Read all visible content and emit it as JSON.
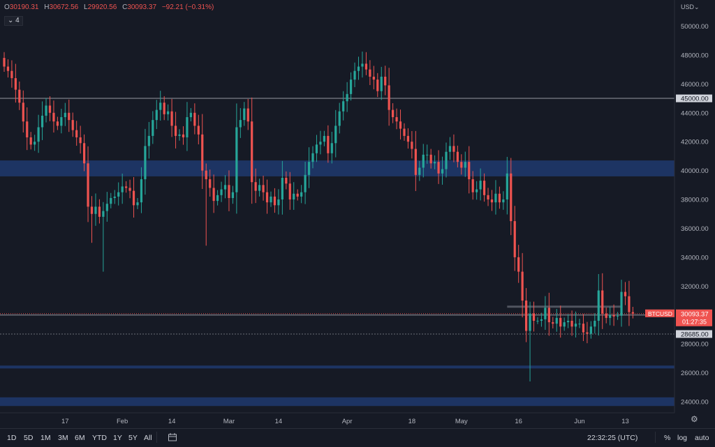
{
  "legend": {
    "open_key": "O",
    "open_value": "30190.31",
    "high_key": "H",
    "high_value": "30672.56",
    "low_key": "L",
    "low_value": "29920.56",
    "close_key": "C",
    "close_value": "30093.37",
    "change": "−92.21 (−0.31%)"
  },
  "indicators_count": "4",
  "currency": "USD",
  "price_axis": {
    "ticks": [
      "50000.00",
      "48000.00",
      "46000.00",
      "45000.00",
      "44000.00",
      "42000.00",
      "40000.00",
      "38000.00",
      "36000.00",
      "34000.00",
      "32000.00",
      "30000.00",
      "28685.00",
      "28000.00",
      "26000.00",
      "24000.00"
    ]
  },
  "price_labels": {
    "symbol": "BTCUSD",
    "last_price": "30093.37",
    "countdown": "01:27:35",
    "level_30000": "30000.00",
    "level_28685": "28685.00",
    "level_45000": "45000.00"
  },
  "time_axis": [
    "17",
    "Feb",
    "14",
    "Mar",
    "14",
    "Apr",
    "18",
    "May",
    "16",
    "Jun",
    "13"
  ],
  "bottom_bar": {
    "timeframes": [
      "1D",
      "5D",
      "1M",
      "3M",
      "6M",
      "YTD",
      "1Y",
      "5Y",
      "All"
    ],
    "clock": "22:32:25 (UTC)",
    "percent": "%",
    "log": "log",
    "auto": "auto"
  },
  "colors": {
    "background": "#161a25",
    "up": "#26a69a",
    "down": "#ef5350",
    "zone": "#1e3a6e",
    "text": "#b2b5be"
  },
  "chart_data": {
    "type": "candlestick",
    "symbol": "BTCUSD",
    "ylim": [
      23500,
      51500
    ],
    "price_axis_values": [
      50000,
      48000,
      46000,
      45000,
      44000,
      42000,
      40000,
      38000,
      36000,
      34000,
      32000,
      30000,
      28685,
      28000,
      26000,
      24000
    ],
    "x_ticks": [
      {
        "label": "17",
        "day": 16
      },
      {
        "label": "Feb",
        "day": 31
      },
      {
        "label": "14",
        "day": 44
      },
      {
        "label": "Mar",
        "day": 59
      },
      {
        "label": "14",
        "day": 72
      },
      {
        "label": "Apr",
        "day": 90
      },
      {
        "label": "18",
        "day": 107
      },
      {
        "label": "May",
        "day": 120
      },
      {
        "label": "16",
        "day": 135
      },
      {
        "label": "Jun",
        "day": 151
      },
      {
        "label": "13",
        "day": 163
      }
    ],
    "horizontal_lines": [
      45000,
      30093.37,
      30000,
      28685
    ],
    "zones": [
      [
        39600,
        40700
      ],
      [
        26300,
        26500
      ],
      [
        23700,
        24300
      ]
    ],
    "last_close": 30093.37,
    "closes": [
      47200,
      46900,
      46400,
      45600,
      44700,
      43400,
      42300,
      41800,
      42000,
      43000,
      43800,
      44500,
      44000,
      43400,
      43100,
      43700,
      44000,
      43500,
      42800,
      42300,
      41900,
      40500,
      37500,
      37000,
      37500,
      36800,
      37200,
      37700,
      38100,
      38200,
      38500,
      38900,
      38800,
      38600,
      37600,
      37800,
      39400,
      41700,
      42400,
      43500,
      44200,
      44700,
      43900,
      44100,
      43100,
      42400,
      42500,
      42300,
      43700,
      44000,
      43100,
      42500,
      40000,
      39400,
      38800,
      37900,
      38300,
      38700,
      39000,
      38100,
      38500,
      43000,
      43500,
      44300,
      43400,
      39200,
      38600,
      39000,
      38500,
      37800,
      38200,
      37600,
      38000,
      39500,
      39100,
      38000,
      38400,
      38200,
      38500,
      39700,
      40600,
      41200,
      41800,
      42000,
      42400,
      41200,
      41900,
      43100,
      44100,
      44800,
      45300,
      46300,
      46900,
      47200,
      47400,
      47000,
      46500,
      46300,
      45500,
      46500,
      45900,
      44200,
      43700,
      43400,
      42900,
      42400,
      42000,
      41500,
      39700,
      40200,
      41100,
      41100,
      40500,
      40600,
      39800,
      40100,
      41300,
      41700,
      41300,
      40600,
      40200,
      40600,
      39400,
      38500,
      38700,
      39300,
      38300,
      38000,
      37800,
      38400,
      37800,
      38000,
      39800,
      36500,
      34000,
      33000,
      31000,
      28900,
      30100,
      29600,
      29600,
      29700,
      30500,
      29500,
      29400,
      29800,
      29200,
      29500,
      29600,
      29200,
      29400,
      29400,
      28800,
      28700,
      29200,
      29600,
      31700,
      30100,
      29800,
      30000,
      29900,
      29950,
      31600,
      31300,
      30200,
      30093
    ]
  }
}
